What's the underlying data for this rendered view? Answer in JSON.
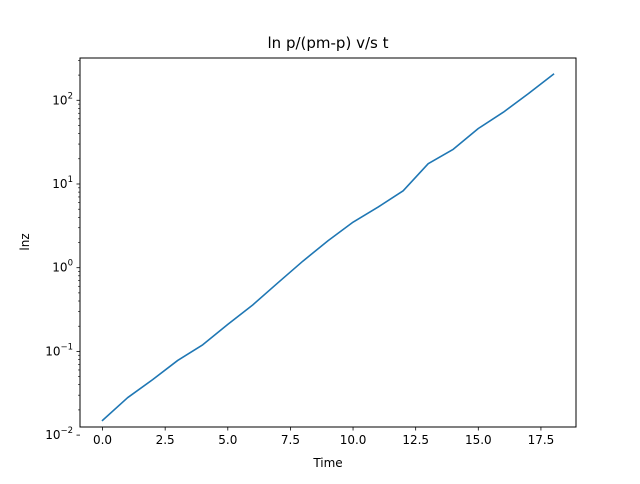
{
  "chart_data": {
    "type": "line",
    "title": "ln p/(pm-p)  v/s  t",
    "xlabel": "Time",
    "ylabel": "lnz",
    "xscale": "linear",
    "yscale": "log",
    "xlim": [
      -0.9,
      18.9
    ],
    "ylim": [
      0.0125,
      320
    ],
    "grid": false,
    "line_color": "#1f77b4",
    "x_ticks": [
      {
        "value": 0.0,
        "label": "0.0"
      },
      {
        "value": 2.5,
        "label": "2.5"
      },
      {
        "value": 5.0,
        "label": "5.0"
      },
      {
        "value": 7.5,
        "label": "7.5"
      },
      {
        "value": 10.0,
        "label": "10.0"
      },
      {
        "value": 12.5,
        "label": "12.5"
      },
      {
        "value": 15.0,
        "label": "15.0"
      },
      {
        "value": 17.5,
        "label": "17.5"
      }
    ],
    "y_ticks": [
      {
        "value": 0.01,
        "base": "10",
        "exp": "−2"
      },
      {
        "value": 0.1,
        "base": "10",
        "exp": "−1"
      },
      {
        "value": 1,
        "base": "10",
        "exp": "0"
      },
      {
        "value": 10,
        "base": "10",
        "exp": "1"
      },
      {
        "value": 100,
        "base": "10",
        "exp": "2"
      }
    ],
    "series": [
      {
        "x": [
          0,
          1,
          2,
          3,
          4,
          5,
          6,
          7,
          8,
          9,
          10,
          11,
          12,
          13,
          14,
          15,
          16,
          17,
          18
        ],
        "y": [
          0.015,
          0.028,
          0.046,
          0.078,
          0.12,
          0.21,
          0.36,
          0.66,
          1.2,
          2.1,
          3.5,
          5.3,
          8.3,
          17.5,
          26,
          46,
          72,
          120,
          205
        ]
      }
    ]
  }
}
